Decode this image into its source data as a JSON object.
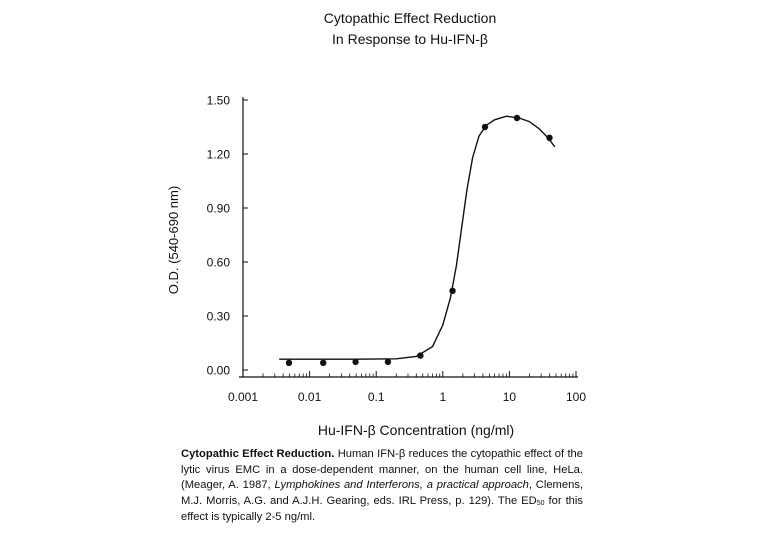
{
  "chart_data": {
    "type": "scatter",
    "title_lines": [
      "Cytopathic Effect Reduction",
      "In Response to Hu-IFN-β"
    ],
    "xlabel": "Hu-IFN-β Concentration (ng/ml)",
    "ylabel": "O.D. (540-690 nm)",
    "x_scale": "log",
    "xlim": [
      0.001,
      100
    ],
    "ylim": [
      0.0,
      1.5
    ],
    "x_ticks": [
      "0.001",
      "0.01",
      "0.1",
      "1",
      "10",
      "100"
    ],
    "y_ticks": [
      "0.00",
      "0.30",
      "0.60",
      "0.90",
      "1.20",
      "1.50"
    ],
    "grid": false,
    "series": [
      {
        "points": [
          {
            "x": 0.0049,
            "y": 0.04
          },
          {
            "x": 0.016,
            "y": 0.04
          },
          {
            "x": 0.049,
            "y": 0.045
          },
          {
            "x": 0.15,
            "y": 0.045
          },
          {
            "x": 0.46,
            "y": 0.08
          },
          {
            "x": 1.4,
            "y": 0.44
          },
          {
            "x": 4.3,
            "y": 1.35
          },
          {
            "x": 13,
            "y": 1.4
          },
          {
            "x": 40,
            "y": 1.29
          }
        ],
        "fit_curve": [
          [
            0.0035,
            0.06
          ],
          [
            0.01,
            0.06
          ],
          [
            0.05,
            0.06
          ],
          [
            0.2,
            0.062
          ],
          [
            0.4,
            0.075
          ],
          [
            0.7,
            0.13
          ],
          [
            1.0,
            0.25
          ],
          [
            1.3,
            0.4
          ],
          [
            1.6,
            0.58
          ],
          [
            1.9,
            0.78
          ],
          [
            2.3,
            1.0
          ],
          [
            2.8,
            1.18
          ],
          [
            3.5,
            1.3
          ],
          [
            4.5,
            1.36
          ],
          [
            6.0,
            1.39
          ],
          [
            9.0,
            1.41
          ],
          [
            14,
            1.4
          ],
          [
            20,
            1.38
          ],
          [
            28,
            1.34
          ],
          [
            38,
            1.29
          ],
          [
            48,
            1.24
          ]
        ],
        "color": "#111111"
      }
    ]
  },
  "caption": {
    "bold_lead": "Cytopathic Effect Reduction.",
    "text_1": " Human IFN-β reduces the cytopathic effect of the lytic virus EMC in a dose-dependent manner, on the human cell line, HeLa. (Meager, A. 1987, ",
    "italic_ref": "Lymphokines and Interferons, a practical approach",
    "text_2": ", Clemens, M.J. Morris, A.G. and A.J.H. Gearing, eds. IRL Press, p. 129). The ED",
    "ed_sub": "50",
    "text_3": " for this effect is typically 2-5 ng/ml."
  }
}
